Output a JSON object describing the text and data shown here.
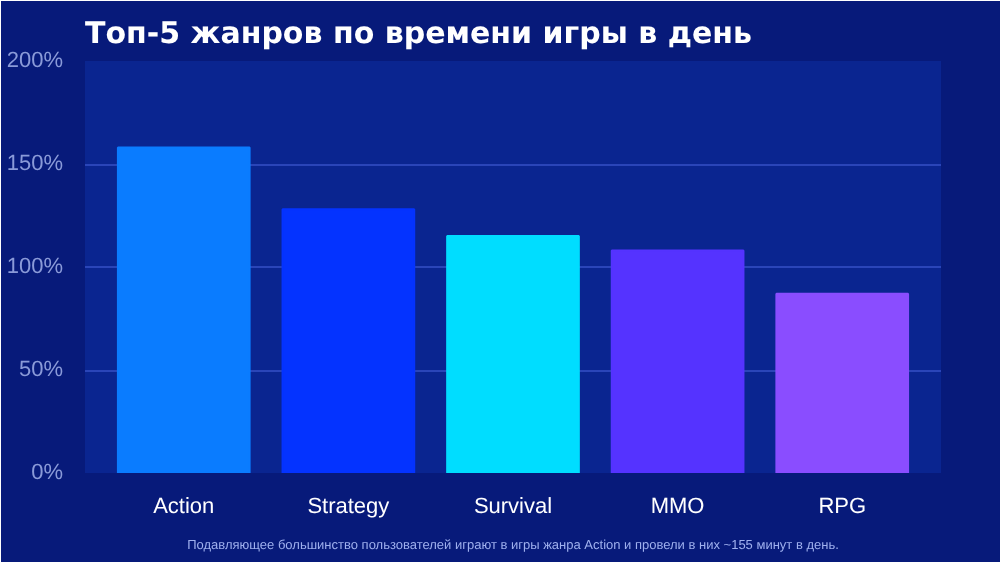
{
  "chart_data": {
    "type": "bar",
    "title": "Топ-5 жанров по времени игры в день",
    "categories": [
      "Action",
      "Strategy",
      "Survival",
      "MMO",
      "RPG"
    ],
    "values": [
      158,
      128,
      115,
      108,
      87
    ],
    "colors": [
      "#0a7cff",
      "#0433ff",
      "#00ddff",
      "#5533ff",
      "#8a4dff"
    ],
    "ylim": [
      0,
      200
    ],
    "yticks": [
      {
        "value": 0,
        "label": "0%"
      },
      {
        "value": 50,
        "label": "50%"
      },
      {
        "value": 100,
        "label": "100%"
      },
      {
        "value": 150,
        "label": "150%"
      },
      {
        "value": 200,
        "label": "200%"
      }
    ],
    "grid": "y",
    "annotations": [
      "Подавляющее большинство пользователей играют в игры жанра Action и провели в них ~155 минут в день."
    ]
  }
}
